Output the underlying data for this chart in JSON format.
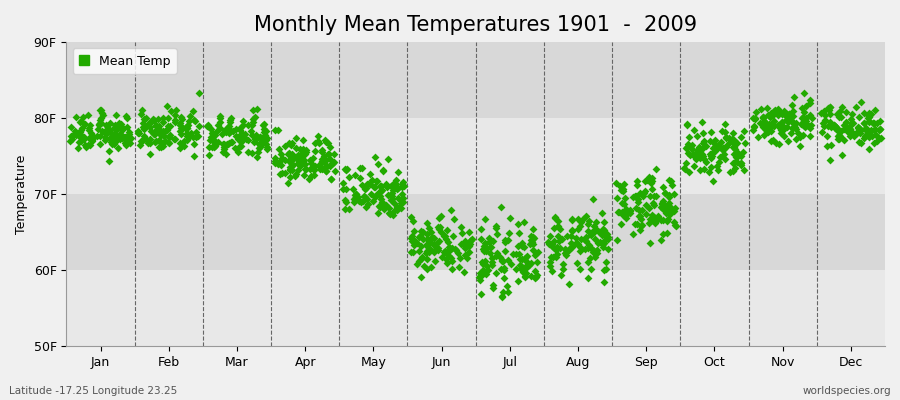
{
  "title": "Monthly Mean Temperatures 1901  -  2009",
  "ylabel": "Temperature",
  "xlabel_months": [
    "Jan",
    "Feb",
    "Mar",
    "Apr",
    "May",
    "Jun",
    "Jul",
    "Aug",
    "Sep",
    "Oct",
    "Nov",
    "Dec"
  ],
  "ylim": [
    50,
    90
  ],
  "yticks": [
    50,
    60,
    70,
    80,
    90
  ],
  "ytick_labels": [
    "50F",
    "60F",
    "70F",
    "80F",
    "90F"
  ],
  "dot_color": "#22aa00",
  "background_color": "#f0f0f0",
  "plot_bg_color": "#f0f0f0",
  "band_color_light": "#e8e8e8",
  "band_color_dark": "#d8d8d8",
  "grid_color": "#666666",
  "legend_label": "Mean Temp",
  "bottom_left_text": "Latitude -17.25 Longitude 23.25",
  "bottom_right_text": "worldspecies.org",
  "n_years": 109,
  "mean_temps": [
    78.0,
    78.2,
    77.5,
    74.5,
    70.5,
    63.5,
    61.5,
    63.5,
    68.5,
    75.5,
    79.5,
    79.0
  ],
  "std_temps": [
    1.2,
    1.3,
    1.4,
    1.5,
    1.8,
    1.8,
    2.0,
    2.0,
    2.0,
    1.8,
    1.5,
    1.4
  ],
  "title_fontsize": 15,
  "label_fontsize": 9,
  "tick_fontsize": 9,
  "marker_size": 16,
  "figsize": [
    9.0,
    4.0
  ],
  "dpi": 100
}
